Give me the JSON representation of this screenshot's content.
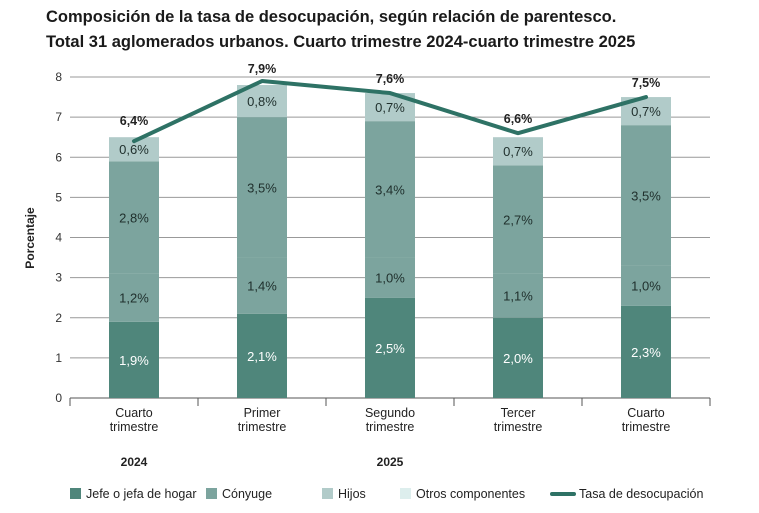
{
  "chart_data": {
    "type": "bar",
    "stacked": true,
    "title": "Composición de la tasa de desocupación, según relación de parentesco.",
    "subtitle": "Total 31 aglomerados urbanos. Cuarto trimestre 2024-cuarto trimestre 2025",
    "ylabel": "Porcentaje",
    "xlabel": "",
    "ylim": [
      0,
      8
    ],
    "yticks": [
      "0",
      "1",
      "2",
      "3",
      "4",
      "5",
      "6",
      "7",
      "8"
    ],
    "grid": true,
    "legend_position": "bottom",
    "categories": [
      [
        "Cuarto",
        "trimestre"
      ],
      [
        "Primer",
        "trimestre"
      ],
      [
        "Segundo",
        "trimestre"
      ],
      [
        "Tercer",
        "trimestre"
      ],
      [
        "Cuarto",
        "trimestre"
      ]
    ],
    "year_labels": [
      {
        "label": "2024",
        "category_index": 0
      },
      {
        "label": "2025",
        "category_index": 2
      }
    ],
    "series": [
      {
        "name": "Jefe o jefa de hogar",
        "color": "#4f867b",
        "values": [
          1.9,
          2.1,
          2.5,
          2.0,
          2.3
        ],
        "labels": [
          "1,9%",
          "2,1%",
          "2,5%",
          "2,0%",
          "2,3%"
        ]
      },
      {
        "name": "Cónyuge",
        "color": "#7ca49e",
        "values": [
          1.2,
          1.4,
          1.0,
          1.1,
          1.0
        ],
        "labels": [
          "1,2%",
          "1,4%",
          "1,0%",
          "1,1%",
          "1,0%"
        ]
      },
      {
        "name": "Hijos",
        "color": "#7ca49e",
        "values": [
          2.8,
          3.5,
          3.4,
          2.7,
          3.5
        ],
        "labels": [
          "2,8%",
          "3,5%",
          "3,4%",
          "2,7%",
          "3,5%"
        ]
      },
      {
        "name": "Hijos_top",
        "color": "#b1cbc9",
        "values": [
          0.6,
          0.8,
          0.7,
          0.7,
          0.7
        ],
        "labels": [
          "0,6%",
          "0,8%",
          "0,7%",
          "0,7%",
          "0,7%"
        ]
      }
    ],
    "legend": [
      {
        "name": "Jefe o jefa de hogar",
        "color": "#4f867b",
        "kind": "box"
      },
      {
        "name": "Cónyuge",
        "color": "#7ca49e",
        "kind": "box"
      },
      {
        "name": "Hijos",
        "color": "#b1cbc9",
        "kind": "box"
      },
      {
        "name": "Otros componentes",
        "color": "#ddeeed",
        "kind": "box"
      },
      {
        "name": "Tasa de desocupación",
        "color": "#2e7265",
        "kind": "line"
      }
    ],
    "line": {
      "name": "Tasa de desocupación",
      "color": "#2e7265",
      "values": [
        6.4,
        7.9,
        7.6,
        6.6,
        7.5
      ],
      "labels": [
        "6,4%",
        "7,9%",
        "7,6%",
        "6,6%",
        "7,5%"
      ]
    }
  }
}
